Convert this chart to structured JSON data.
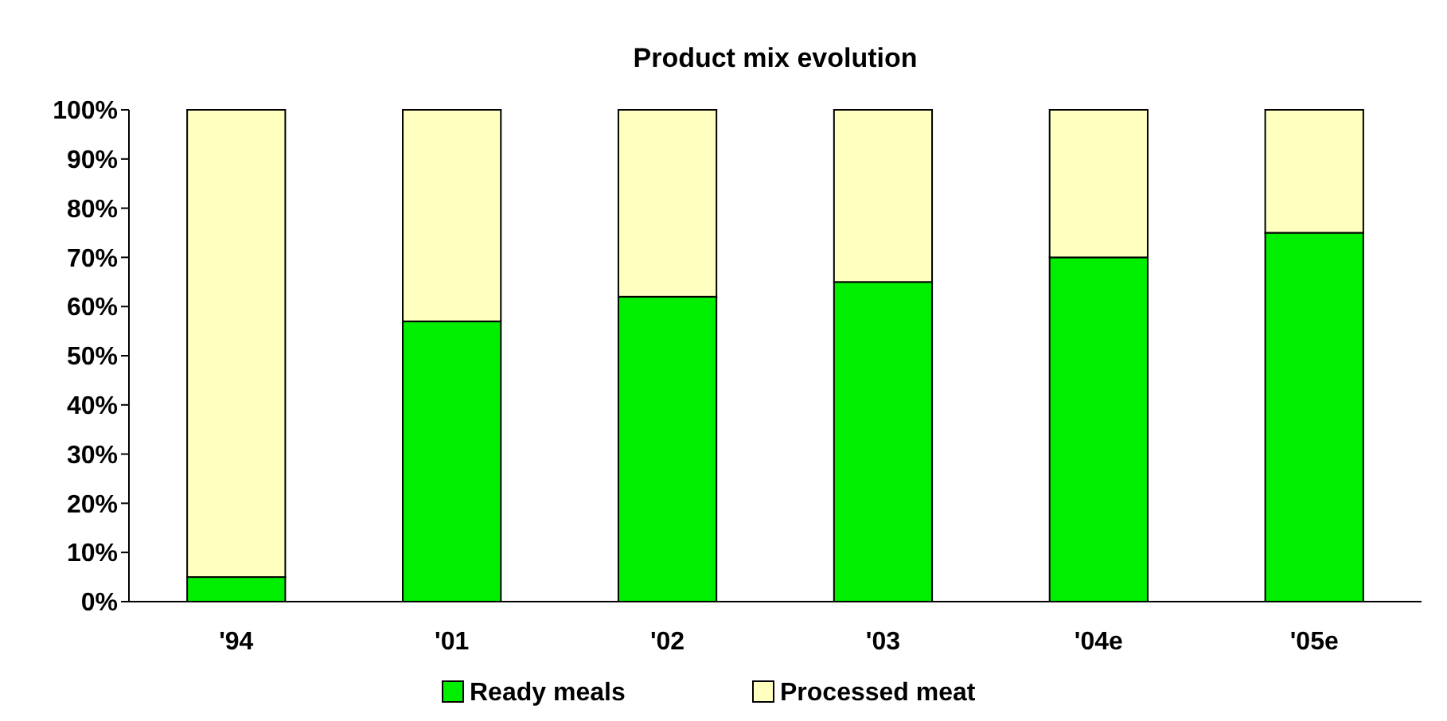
{
  "chart_data": {
    "type": "bar",
    "title": "Product mix evolution",
    "categories": [
      "'94",
      "'01",
      "'02",
      "'03",
      "'04e",
      "'05e"
    ],
    "series": [
      {
        "name": "Ready meals",
        "color": "#00ee00",
        "values": [
          5,
          57,
          62,
          65,
          70,
          75
        ]
      },
      {
        "name": "Processed meat",
        "color": "#ffffc0",
        "values": [
          95,
          43,
          38,
          35,
          30,
          25
        ]
      }
    ],
    "stacked": true,
    "ylim": [
      0,
      100
    ],
    "yticks": [
      {
        "value": 0,
        "label": "0%"
      },
      {
        "value": 10,
        "label": "10%"
      },
      {
        "value": 20,
        "label": "20%"
      },
      {
        "value": 30,
        "label": "30%"
      },
      {
        "value": 40,
        "label": "40%"
      },
      {
        "value": 50,
        "label": "50%"
      },
      {
        "value": 60,
        "label": "60%"
      },
      {
        "value": 70,
        "label": "70%"
      },
      {
        "value": 80,
        "label": "80%"
      },
      {
        "value": 90,
        "label": "90%"
      },
      {
        "value": 100,
        "label": "100%"
      }
    ],
    "grid": false,
    "legend": "bottom"
  }
}
